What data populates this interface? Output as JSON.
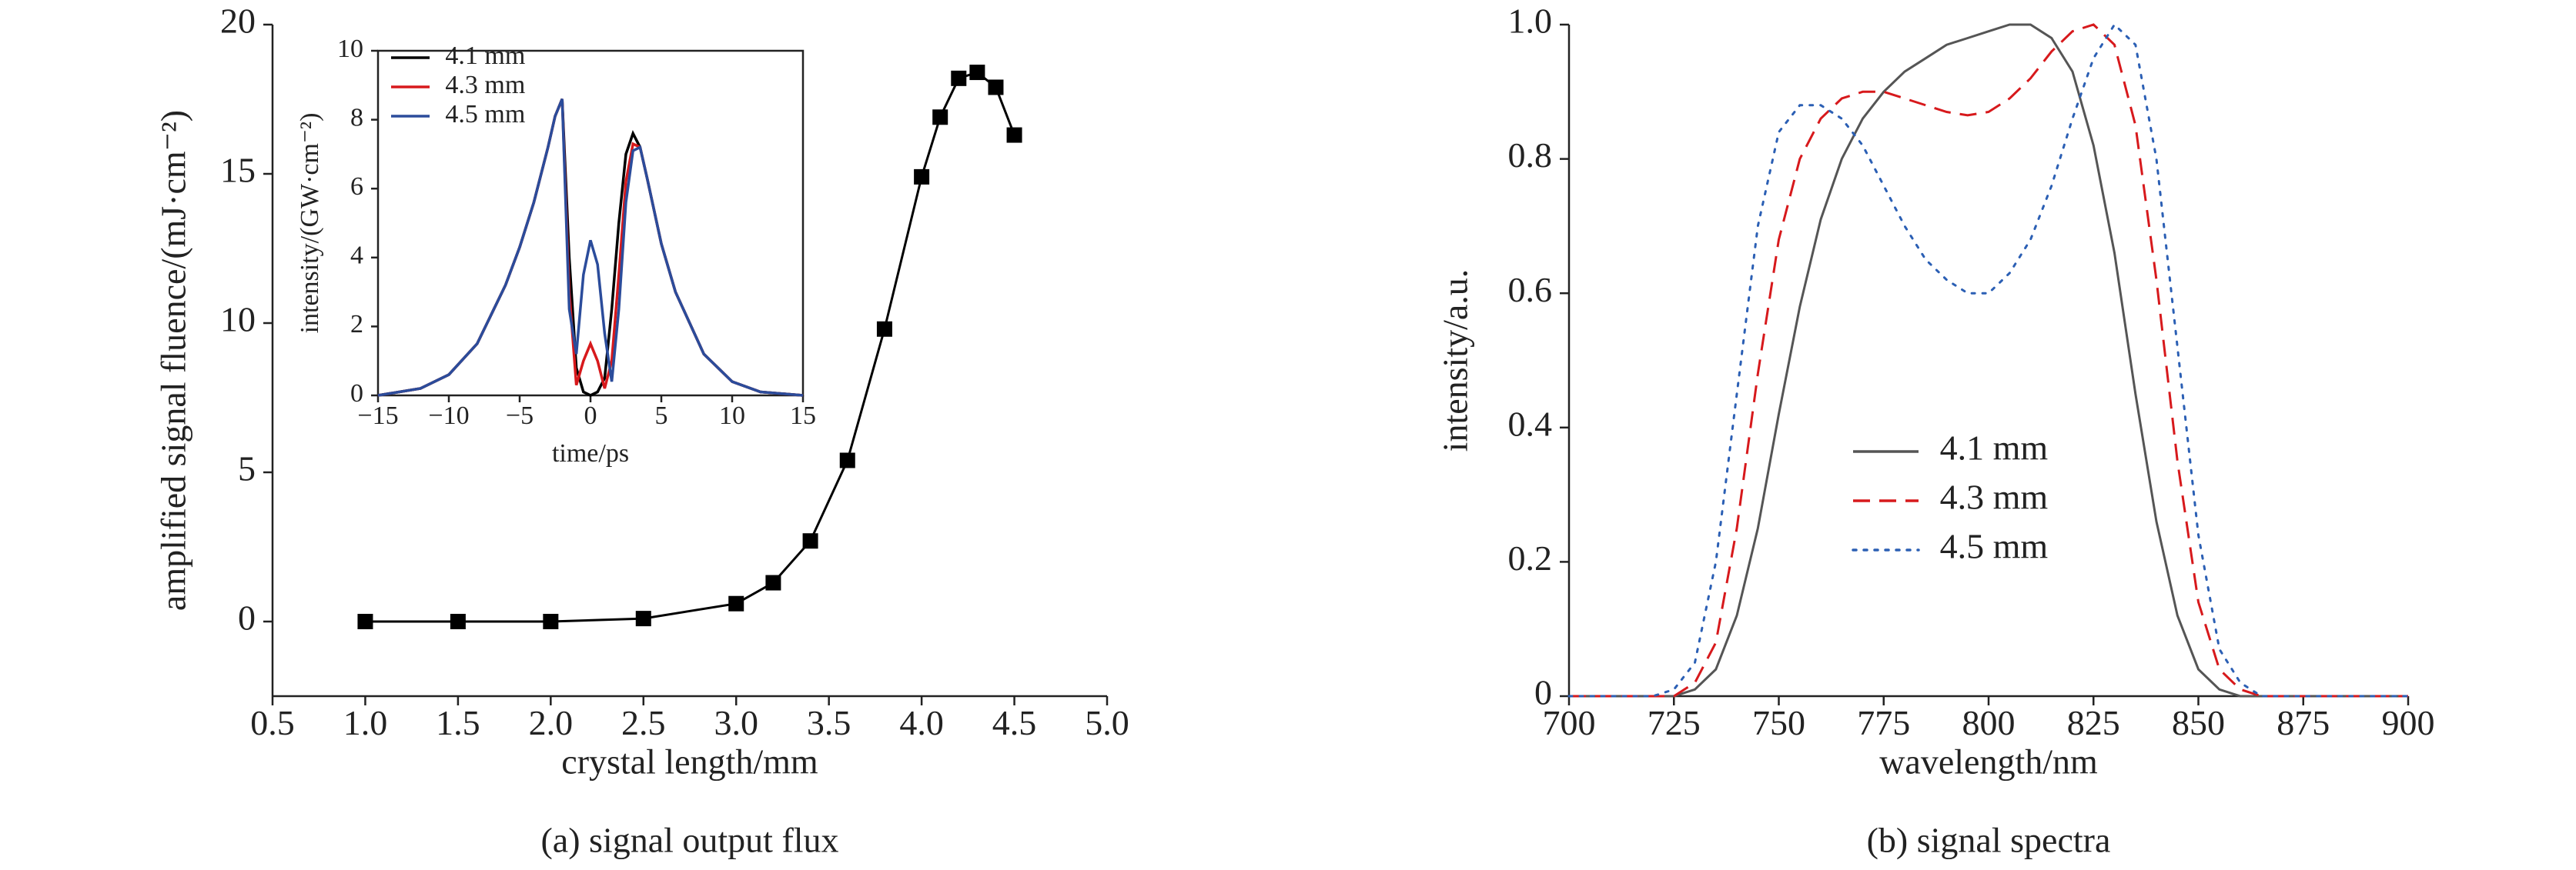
{
  "chart_data": [
    {
      "type": "line",
      "marker": "square",
      "color": "#000000",
      "xlabel": "crystal length/mm",
      "ylabel": "amplified signal fluence/(mJ·cm⁻²)",
      "caption": "(a) signal output flux",
      "x": [
        1.0,
        1.5,
        2.0,
        2.5,
        3.0,
        3.2,
        3.4,
        3.6,
        3.8,
        4.0,
        4.1,
        4.2,
        4.3,
        4.4,
        4.5
      ],
      "values": [
        0,
        0,
        0,
        0.1,
        0.6,
        1.3,
        2.7,
        5.4,
        9.8,
        14.9,
        16.9,
        18.2,
        18.4,
        17.9,
        16.3
      ],
      "xlim": [
        0.5,
        5.0
      ],
      "xticks": [
        0.5,
        {
          "value": 1,
          "label": "1.0"
        },
        1.5,
        {
          "value": 2,
          "label": "2.0"
        },
        2.5,
        {
          "value": 3,
          "label": "3.0"
        },
        3.5,
        {
          "value": 4,
          "label": "4.0"
        },
        4.5,
        {
          "value": 5,
          "label": "5.0"
        }
      ],
      "ylim": [
        -2.5,
        20
      ],
      "yticks": [
        0,
        5,
        10,
        15,
        20
      ]
    },
    {
      "type": "line",
      "xlabel": "time/ps",
      "ylabel": "intensity/(GW·cm⁻²)",
      "legend": "upper left",
      "x": [
        -15,
        -12,
        -10,
        -8,
        -6,
        -5,
        -4,
        -3,
        -2.5,
        -2,
        -1.5,
        -1,
        -0.5,
        0,
        0.5,
        1,
        1.5,
        2,
        2.5,
        3,
        3.5,
        4,
        5,
        6,
        8,
        10,
        12,
        15
      ],
      "series": [
        {
          "name": "4.1 mm",
          "color": "#000000",
          "values": [
            0,
            0.2,
            0.6,
            1.5,
            3.2,
            4.3,
            5.6,
            7.2,
            8.1,
            8.6,
            4.0,
            0.8,
            0.1,
            0,
            0.1,
            0.5,
            2.5,
            5.0,
            7.0,
            7.6,
            7.2,
            6.3,
            4.4,
            3.0,
            1.2,
            0.4,
            0.1,
            0
          ]
        },
        {
          "name": "4.3 mm",
          "color": "#d7191c",
          "values": [
            0,
            0.2,
            0.6,
            1.5,
            3.2,
            4.3,
            5.6,
            7.2,
            8.1,
            8.6,
            3.0,
            0.3,
            1.0,
            1.5,
            1.0,
            0.2,
            1.0,
            3.5,
            6.2,
            7.3,
            7.2,
            6.3,
            4.4,
            3.0,
            1.2,
            0.4,
            0.1,
            0
          ]
        },
        {
          "name": "4.5 mm",
          "color": "#2b4c9b",
          "values": [
            0,
            0.2,
            0.6,
            1.5,
            3.2,
            4.3,
            5.6,
            7.2,
            8.1,
            8.6,
            2.5,
            1.2,
            3.5,
            4.5,
            3.8,
            1.8,
            0.4,
            2.5,
            5.6,
            7.1,
            7.2,
            6.3,
            4.4,
            3.0,
            1.2,
            0.4,
            0.1,
            0
          ]
        }
      ],
      "xlim": [
        -15,
        15
      ],
      "xticks": [
        {
          "value": -15,
          "label": "−15"
        },
        {
          "value": -10,
          "label": "−10"
        },
        {
          "value": -5,
          "label": "−5"
        },
        0,
        5,
        10,
        15
      ],
      "ylim": [
        0,
        10
      ],
      "yticks": [
        0,
        2,
        4,
        6,
        8,
        10
      ]
    },
    {
      "type": "line",
      "xlabel": "wavelength/nm",
      "ylabel": "intensity/a.u.",
      "caption": "(b) signal spectra",
      "legend": "center",
      "x": [
        700,
        720,
        725,
        730,
        735,
        740,
        745,
        750,
        755,
        760,
        765,
        770,
        775,
        780,
        785,
        790,
        795,
        800,
        805,
        810,
        815,
        820,
        825,
        830,
        835,
        840,
        845,
        850,
        855,
        860,
        865,
        870,
        900
      ],
      "series": [
        {
          "name": "4.1 mm",
          "color": "#555555",
          "dash": "solid",
          "values": [
            0,
            0,
            0,
            0.01,
            0.04,
            0.12,
            0.25,
            0.42,
            0.58,
            0.71,
            0.8,
            0.86,
            0.9,
            0.93,
            0.95,
            0.97,
            0.98,
            0.99,
            1.0,
            1.0,
            0.98,
            0.93,
            0.82,
            0.66,
            0.45,
            0.26,
            0.12,
            0.04,
            0.01,
            0,
            0,
            0,
            0
          ]
        },
        {
          "name": "4.3 mm",
          "color": "#d7191c",
          "dash": "dashed",
          "values": [
            0,
            0,
            0,
            0.02,
            0.08,
            0.25,
            0.48,
            0.68,
            0.8,
            0.86,
            0.89,
            0.9,
            0.9,
            0.89,
            0.88,
            0.87,
            0.865,
            0.87,
            0.89,
            0.92,
            0.96,
            0.99,
            1.0,
            0.97,
            0.85,
            0.62,
            0.35,
            0.14,
            0.04,
            0.01,
            0,
            0,
            0
          ]
        },
        {
          "name": "4.5 mm",
          "color": "#2b5fb4",
          "dash": "dotted",
          "values": [
            0,
            0,
            0.01,
            0.05,
            0.2,
            0.45,
            0.7,
            0.84,
            0.88,
            0.88,
            0.86,
            0.82,
            0.76,
            0.7,
            0.65,
            0.62,
            0.6,
            0.6,
            0.63,
            0.68,
            0.76,
            0.86,
            0.95,
            1.0,
            0.97,
            0.8,
            0.52,
            0.24,
            0.07,
            0.02,
            0,
            0,
            0
          ]
        }
      ],
      "xlim": [
        700,
        900
      ],
      "xticks": [
        700,
        725,
        750,
        775,
        800,
        825,
        850,
        875,
        900
      ],
      "ylim": [
        0,
        1
      ],
      "yticks": [
        0,
        0.2,
        0.4,
        0.6,
        0.8,
        {
          "value": 1,
          "label": "1.0"
        }
      ]
    }
  ]
}
